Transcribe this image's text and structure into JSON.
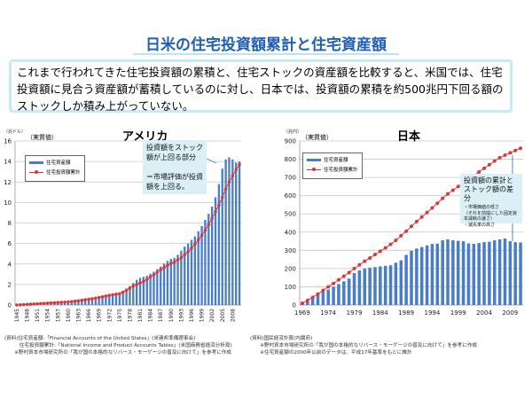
{
  "title": "日米の住宅投資額累計と住宅資産額",
  "summary": "これまで行われてきた住宅投資額の累積と、住宅ストックの資産額を比較すると、米国では、住宅投資額に見合う資産額が蓄積しているのに対し、日本では、投資額の累積を約500兆円下回る額のストックしか積み上がっていない。",
  "colors": {
    "bar": "#4a7dc9",
    "line": "#d9383a",
    "accent": "#1f5fb4",
    "callout": "#dbeff7"
  },
  "chart_data": [
    {
      "type": "bar",
      "title": "アメリカ",
      "unit": "（兆ドル）",
      "note": "（実質値）",
      "ylim": [
        0,
        16
      ],
      "yticks": [
        0,
        2,
        4,
        6,
        8,
        10,
        12,
        14,
        16
      ],
      "grid": true,
      "legend": "top-left",
      "xlabels": [
        "1945",
        "1948",
        "1951",
        "1954",
        "1957",
        "1960",
        "1963",
        "1966",
        "1969",
        "1972",
        "1975",
        "1978",
        "1981",
        "1984",
        "1987",
        "1990",
        "1993",
        "1996",
        "1999",
        "2002",
        "2005",
        "2008"
      ],
      "x_start": 1945,
      "x_end": 2010,
      "series": [
        {
          "name": "住宅資産額",
          "type": "bar",
          "values": [
            0.05,
            0.07,
            0.09,
            0.1,
            0.12,
            0.14,
            0.16,
            0.18,
            0.2,
            0.22,
            0.24,
            0.26,
            0.28,
            0.3,
            0.32,
            0.35,
            0.38,
            0.42,
            0.46,
            0.5,
            0.55,
            0.6,
            0.65,
            0.7,
            0.76,
            0.82,
            0.88,
            0.95,
            1.0,
            1.05,
            1.1,
            1.35,
            1.6,
            1.85,
            2.15,
            2.45,
            2.65,
            2.75,
            2.85,
            3.05,
            3.25,
            3.5,
            3.75,
            4.05,
            4.3,
            4.5,
            4.6,
            4.9,
            5.3,
            5.7,
            6.0,
            6.35,
            6.7,
            7.2,
            7.7,
            8.3,
            8.9,
            9.6,
            10.5,
            11.8,
            13.3,
            14.2,
            14.4,
            14.2,
            13.9,
            14.0
          ]
        },
        {
          "name": "住宅投資額累計",
          "type": "line",
          "values": [
            0,
            0.02,
            0.04,
            0.06,
            0.08,
            0.1,
            0.12,
            0.14,
            0.16,
            0.18,
            0.2,
            0.22,
            0.24,
            0.26,
            0.28,
            0.3,
            0.33,
            0.37,
            0.41,
            0.46,
            0.51,
            0.56,
            0.61,
            0.67,
            0.73,
            0.8,
            0.87,
            0.94,
            1.0,
            1.05,
            1.1,
            1.25,
            1.45,
            1.65,
            1.85,
            2.0,
            2.15,
            2.3,
            2.5,
            2.75,
            2.95,
            3.2,
            3.45,
            3.65,
            3.85,
            4.05,
            4.2,
            4.4,
            4.6,
            4.9,
            5.2,
            5.55,
            5.95,
            6.35,
            6.8,
            7.3,
            7.85,
            8.45,
            9.1,
            9.75,
            10.5,
            11.3,
            12.0,
            12.6,
            13.2,
            13.7
          ]
        }
      ],
      "annotation": "投資額をストック額が上回る部分\n\n＝市場評価が投資額を上回る。"
    },
    {
      "type": "bar",
      "title": "日本",
      "unit": "（兆円）",
      "note": "（実質値）",
      "ylim": [
        0,
        900
      ],
      "yticks": [
        0,
        100,
        200,
        300,
        400,
        500,
        600,
        700,
        800,
        900
      ],
      "grid": true,
      "legend": "top-left",
      "xlabels": [
        "1969",
        "1974",
        "1979",
        "1984",
        "1989",
        "1994",
        "1999",
        "2004",
        "2009"
      ],
      "x_start": 1969,
      "x_end": 2011,
      "series": [
        {
          "name": "住宅資産額",
          "type": "bar",
          "values": [
            10,
            20,
            35,
            55,
            75,
            85,
            100,
            115,
            130,
            145,
            175,
            190,
            200,
            205,
            208,
            212,
            215,
            218,
            232,
            245,
            275,
            297,
            310,
            318,
            327,
            335,
            337,
            355,
            360,
            355,
            352,
            350,
            338,
            336,
            340,
            345,
            347,
            355,
            360,
            365,
            350,
            345,
            343
          ]
        },
        {
          "name": "住宅投資額累計",
          "type": "line",
          "values": [
            10,
            25,
            42,
            60,
            80,
            100,
            118,
            138,
            158,
            178,
            200,
            220,
            240,
            258,
            277,
            295,
            313,
            333,
            355,
            380,
            405,
            432,
            458,
            483,
            508,
            533,
            558,
            585,
            610,
            630,
            650,
            670,
            690,
            710,
            730,
            750,
            770,
            790,
            808,
            822,
            835,
            848,
            860
          ]
        }
      ],
      "annotation_title": "投資額の累計とストック額の差分",
      "annotation_body": "・市場価値の低さ\n（それを前提にした固定資本減耗の速さ）\n・滅失率の高さ"
    }
  ],
  "sources_us": "(資料)住宅資産額:「Financial Accounts of the United States」(米連邦準備理事会)\n　　　住宅投資額累計:「National Income and Product Accounts Tables」(米国商務省経済分析局)\n　　※野村資本市場研究所の「我が国の本格的なリバース・モーゲージの普及に向けて」を参考に作成",
  "sources_jp": "(資料)国民経済計算(内閣府)\n　　※野村資本市場研究所の「我が国の本格的なリバース・モーゲージの普及に向けて」を参考に作成\n　　※住宅資産額の2000年以前のデータは、平成17年基準をもとに推計"
}
